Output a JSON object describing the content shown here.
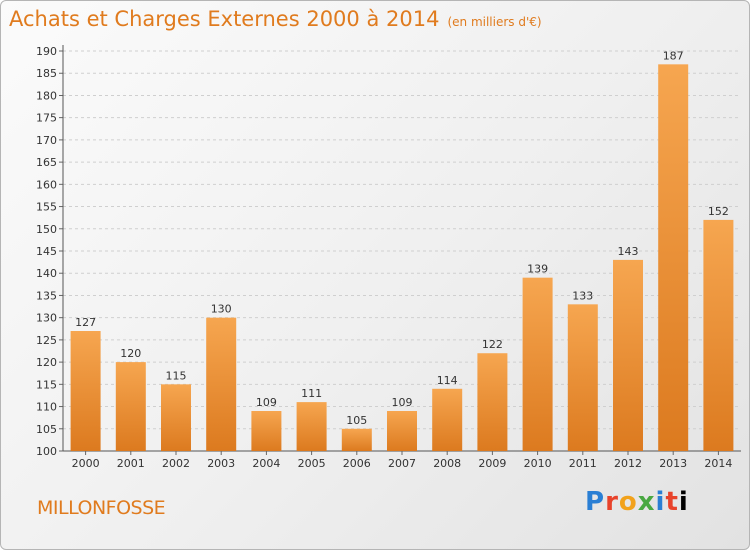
{
  "header": {
    "title": "Achats et Charges Externes 2000 à 2014",
    "unit": "(en milliers d'€)"
  },
  "footer": {
    "commune": "MILLONFOSSE",
    "logo_letters": [
      "P",
      "r",
      "o",
      "x",
      "i",
      "t",
      "i"
    ]
  },
  "colors": {
    "accent": "#e07b1e",
    "bar_light": "#f6a650",
    "bar_dark": "#dc7a1f"
  },
  "chart_data": {
    "type": "bar",
    "title": "Achats et Charges Externes 2000 à 2014",
    "subtitle": "(en milliers d'€)",
    "categories": [
      "2000",
      "2001",
      "2002",
      "2003",
      "2004",
      "2005",
      "2006",
      "2007",
      "2008",
      "2009",
      "2010",
      "2011",
      "2012",
      "2013",
      "2014"
    ],
    "values": [
      127,
      120,
      115,
      130,
      109,
      111,
      105,
      109,
      114,
      122,
      139,
      133,
      143,
      187,
      152
    ],
    "ylim": [
      100,
      190
    ],
    "yticks": [
      100,
      105,
      110,
      115,
      120,
      125,
      130,
      135,
      140,
      145,
      150,
      155,
      160,
      165,
      170,
      175,
      180,
      185,
      190
    ],
    "grid": true,
    "data_labels": true
  }
}
